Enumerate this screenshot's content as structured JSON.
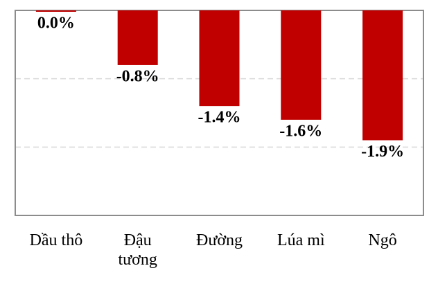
{
  "chart_data": {
    "type": "bar",
    "categories": [
      "Dầu thô",
      "Đậu tương",
      "Đường",
      "Lúa mì",
      "Ngô"
    ],
    "values": [
      0.0,
      -0.8,
      -1.4,
      -1.6,
      -1.9
    ],
    "value_labels": [
      "0.0%",
      "-0.8%",
      "-1.4%",
      "-1.6%",
      "-1.9%"
    ],
    "color": "#c00000",
    "ylim": [
      -3,
      0
    ],
    "yticks": [
      -2,
      -1
    ],
    "grid": true
  }
}
